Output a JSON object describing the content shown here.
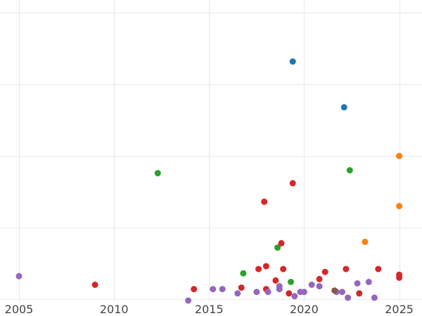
{
  "chart_data": {
    "type": "scatter",
    "title": "",
    "xlabel": "",
    "ylabel": "",
    "xlim": [
      2004.0,
      2026.2
    ],
    "ylim": [
      -0.2,
      20.9
    ],
    "x_ticks": [
      2005,
      2010,
      2015,
      2020,
      2025
    ],
    "x_tick_labels": [
      "2005",
      "2010",
      "2015",
      "2020",
      "2025"
    ],
    "y_gridlines": [
      0,
      5,
      10,
      15,
      20
    ],
    "grid": true,
    "legend": "none",
    "series": [
      {
        "color": "#1f77b4",
        "points": [
          {
            "x": 2019.4,
            "y": 16.6
          },
          {
            "x": 2022.1,
            "y": 13.4
          }
        ]
      },
      {
        "color": "#ff7f0e",
        "points": [
          {
            "x": 2025.0,
            "y": 10.0
          },
          {
            "x": 2025.0,
            "y": 6.5
          },
          {
            "x": 2023.2,
            "y": 4.0
          }
        ]
      },
      {
        "color": "#2ca02c",
        "points": [
          {
            "x": 2012.3,
            "y": 8.8
          },
          {
            "x": 2022.4,
            "y": 9.0
          },
          {
            "x": 2018.6,
            "y": 3.6
          },
          {
            "x": 2016.8,
            "y": 1.8
          },
          {
            "x": 2019.3,
            "y": 1.2
          }
        ]
      },
      {
        "color": "#d62728",
        "points": [
          {
            "x": 2009.0,
            "y": 1.0
          },
          {
            "x": 2014.2,
            "y": 0.7
          },
          {
            "x": 2016.7,
            "y": 0.8
          },
          {
            "x": 2017.6,
            "y": 2.1
          },
          {
            "x": 2017.9,
            "y": 6.8
          },
          {
            "x": 2018.0,
            "y": 2.3
          },
          {
            "x": 2018.0,
            "y": 0.7
          },
          {
            "x": 2018.5,
            "y": 1.3
          },
          {
            "x": 2018.8,
            "y": 3.9
          },
          {
            "x": 2018.9,
            "y": 2.1
          },
          {
            "x": 2019.2,
            "y": 0.4
          },
          {
            "x": 2019.4,
            "y": 8.1
          },
          {
            "x": 2020.8,
            "y": 1.4
          },
          {
            "x": 2021.1,
            "y": 1.9
          },
          {
            "x": 2022.2,
            "y": 2.1
          },
          {
            "x": 2022.9,
            "y": 0.4
          },
          {
            "x": 2023.9,
            "y": 2.1
          },
          {
            "x": 2025.0,
            "y": 1.7
          },
          {
            "x": 2025.0,
            "y": 1.5
          }
        ]
      },
      {
        "color": "#9467bd",
        "points": [
          {
            "x": 2005.0,
            "y": 1.6
          },
          {
            "x": 2013.9,
            "y": -0.1
          },
          {
            "x": 2015.2,
            "y": 0.7
          },
          {
            "x": 2015.7,
            "y": 0.7
          },
          {
            "x": 2016.5,
            "y": 0.4
          },
          {
            "x": 2017.5,
            "y": 0.5
          },
          {
            "x": 2018.1,
            "y": 0.5
          },
          {
            "x": 2018.7,
            "y": 0.7
          },
          {
            "x": 2018.7,
            "y": 0.9
          },
          {
            "x": 2019.5,
            "y": 0.2
          },
          {
            "x": 2019.8,
            "y": 0.5
          },
          {
            "x": 2020.0,
            "y": 0.5
          },
          {
            "x": 2020.4,
            "y": 1.0
          },
          {
            "x": 2020.8,
            "y": 0.9
          },
          {
            "x": 2021.7,
            "y": 0.5
          },
          {
            "x": 2022.0,
            "y": 0.5
          },
          {
            "x": 2022.3,
            "y": 0.1
          },
          {
            "x": 2022.8,
            "y": 1.1
          },
          {
            "x": 2023.4,
            "y": 1.2
          },
          {
            "x": 2023.7,
            "y": 0.1
          }
        ]
      },
      {
        "color": "#8c564b",
        "points": [
          {
            "x": 2021.6,
            "y": 0.6
          }
        ]
      }
    ]
  }
}
